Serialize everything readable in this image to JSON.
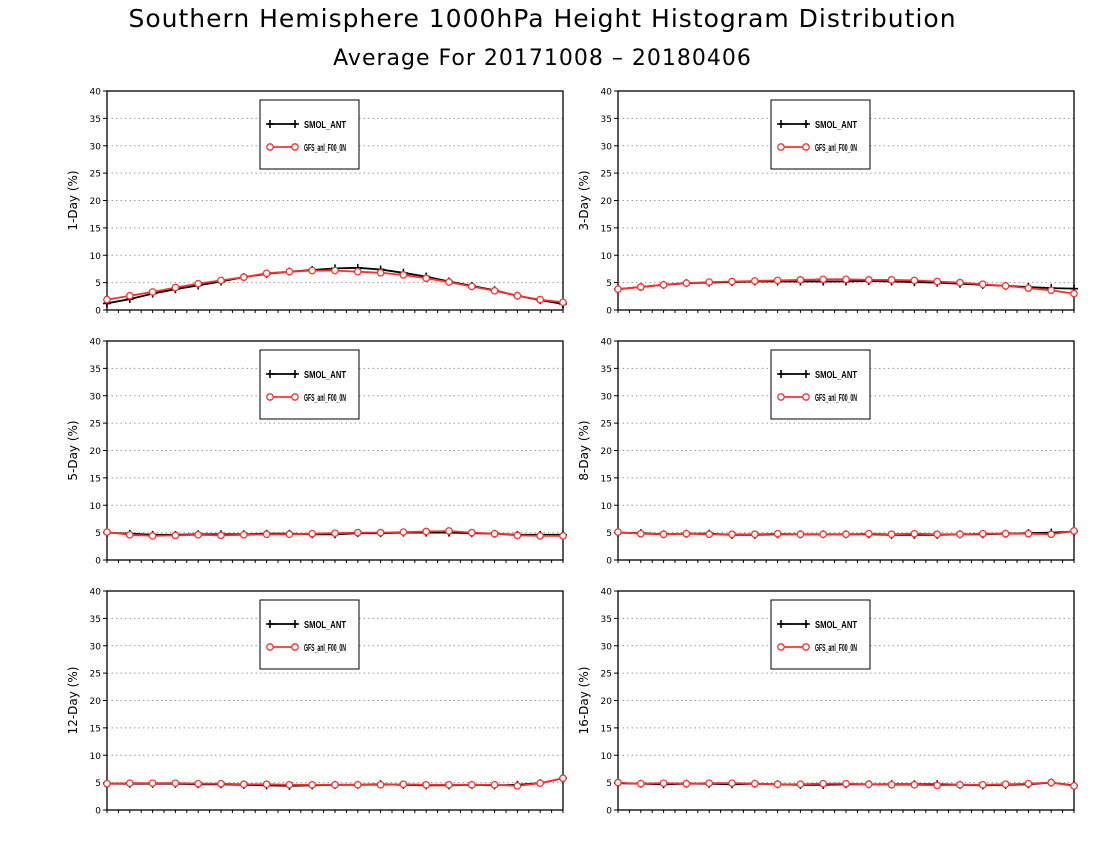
{
  "title": "Southern Hemisphere 1000hPa Height Histogram Distribution",
  "subtitle": "Average For 20171008 – 20180406",
  "colors": {
    "series1": "#000000",
    "series2": "#ff3030",
    "grid": "#9a9a9a"
  },
  "chart_data": [
    {
      "type": "line",
      "ylabel": "1-Day (%)",
      "ylim": [
        0,
        40
      ],
      "yticks": [
        0,
        5,
        10,
        15,
        20,
        25,
        30,
        35,
        40
      ],
      "grid": true,
      "legend": "top-center",
      "series": [
        {
          "name": "SMOL_ANT",
          "marker": "plus",
          "values": [
            1.2,
            2.0,
            3.0,
            3.8,
            4.5,
            5.2,
            6.0,
            6.6,
            7.0,
            7.3,
            7.6,
            7.7,
            7.4,
            6.8,
            6.1,
            5.2,
            4.4,
            3.6,
            2.6,
            1.8,
            1.1
          ]
        },
        {
          "name": "GFS_anl_F00_0N",
          "marker": "circle",
          "values": [
            1.9,
            2.6,
            3.3,
            4.1,
            4.8,
            5.4,
            6.0,
            6.7,
            7.0,
            7.2,
            7.2,
            7.0,
            6.8,
            6.4,
            5.8,
            5.1,
            4.3,
            3.5,
            2.6,
            1.9,
            1.4
          ]
        }
      ]
    },
    {
      "type": "line",
      "ylabel": "3-Day (%)",
      "ylim": [
        0,
        40
      ],
      "yticks": [
        0,
        5,
        10,
        15,
        20,
        25,
        30,
        35,
        40
      ],
      "grid": true,
      "legend": "top-center",
      "series": [
        {
          "name": "SMOL_ANT",
          "marker": "plus",
          "values": [
            3.8,
            4.2,
            4.6,
            4.9,
            5.0,
            5.1,
            5.2,
            5.2,
            5.2,
            5.2,
            5.2,
            5.3,
            5.2,
            5.1,
            5.0,
            4.8,
            4.6,
            4.4,
            4.2,
            4.0,
            3.9
          ]
        },
        {
          "name": "GFS_anl_F00_0N",
          "marker": "circle",
          "values": [
            3.8,
            4.2,
            4.6,
            4.9,
            5.1,
            5.2,
            5.3,
            5.4,
            5.5,
            5.6,
            5.6,
            5.5,
            5.5,
            5.4,
            5.2,
            5.0,
            4.7,
            4.4,
            4.0,
            3.6,
            3.0
          ]
        }
      ]
    },
    {
      "type": "line",
      "ylabel": "5-Day (%)",
      "ylim": [
        0,
        40
      ],
      "yticks": [
        0,
        5,
        10,
        15,
        20,
        25,
        30,
        35,
        40
      ],
      "grid": true,
      "legend": "top-center",
      "series": [
        {
          "name": "SMOL_ANT",
          "marker": "plus",
          "values": [
            5.0,
            4.8,
            4.6,
            4.6,
            4.7,
            4.7,
            4.7,
            4.8,
            4.8,
            4.7,
            4.7,
            4.9,
            4.9,
            5.0,
            5.0,
            5.0,
            4.9,
            4.8,
            4.6,
            4.6,
            4.6
          ]
        },
        {
          "name": "GFS_anl_F00_0N",
          "marker": "circle",
          "values": [
            5.1,
            4.6,
            4.4,
            4.5,
            4.6,
            4.5,
            4.6,
            4.7,
            4.7,
            4.8,
            4.9,
            5.0,
            5.0,
            5.1,
            5.2,
            5.3,
            5.0,
            4.8,
            4.5,
            4.4,
            4.4
          ]
        }
      ]
    },
    {
      "type": "line",
      "ylabel": "8-Day (%)",
      "ylim": [
        0,
        40
      ],
      "yticks": [
        0,
        5,
        10,
        15,
        20,
        25,
        30,
        35,
        40
      ],
      "grid": true,
      "legend": "top-center",
      "series": [
        {
          "name": "SMOL_ANT",
          "marker": "plus",
          "values": [
            5.0,
            4.9,
            4.7,
            4.8,
            4.8,
            4.6,
            4.6,
            4.7,
            4.7,
            4.7,
            4.7,
            4.7,
            4.6,
            4.6,
            4.6,
            4.7,
            4.7,
            4.8,
            4.9,
            5.0,
            5.2
          ]
        },
        {
          "name": "GFS_anl_F00_0N",
          "marker": "circle",
          "values": [
            5.1,
            4.8,
            4.7,
            4.8,
            4.7,
            4.7,
            4.7,
            4.8,
            4.7,
            4.7,
            4.7,
            4.8,
            4.7,
            4.8,
            4.7,
            4.7,
            4.8,
            4.8,
            4.8,
            4.7,
            5.3
          ]
        }
      ]
    },
    {
      "type": "line",
      "ylabel": "12-Day (%)",
      "ylim": [
        0,
        40
      ],
      "yticks": [
        0,
        5,
        10,
        15,
        20,
        25,
        30,
        35,
        40
      ],
      "grid": true,
      "legend": "top-center",
      "series": [
        {
          "name": "SMOL_ANT",
          "marker": "plus",
          "values": [
            4.8,
            4.8,
            4.8,
            4.8,
            4.7,
            4.7,
            4.6,
            4.5,
            4.4,
            4.5,
            4.6,
            4.6,
            4.7,
            4.6,
            4.5,
            4.5,
            4.6,
            4.5,
            4.6,
            4.9,
            5.8
          ]
        },
        {
          "name": "GFS_anl_F00_0N",
          "marker": "circle",
          "values": [
            4.8,
            4.9,
            4.9,
            4.9,
            4.8,
            4.8,
            4.7,
            4.7,
            4.6,
            4.6,
            4.6,
            4.6,
            4.6,
            4.7,
            4.6,
            4.6,
            4.6,
            4.6,
            4.4,
            4.9,
            5.8
          ]
        }
      ]
    },
    {
      "type": "line",
      "ylabel": "16-Day (%)",
      "ylim": [
        0,
        40
      ],
      "yticks": [
        0,
        5,
        10,
        15,
        20,
        25,
        30,
        35,
        40
      ],
      "grid": true,
      "legend": "top-center",
      "series": [
        {
          "name": "SMOL_ANT",
          "marker": "plus",
          "values": [
            4.9,
            4.8,
            4.7,
            4.8,
            4.8,
            4.7,
            4.8,
            4.7,
            4.6,
            4.6,
            4.7,
            4.7,
            4.7,
            4.7,
            4.7,
            4.6,
            4.5,
            4.6,
            4.7,
            5.0,
            4.5
          ]
        },
        {
          "name": "GFS_anl_F00_0N",
          "marker": "circle",
          "values": [
            5.0,
            4.8,
            4.9,
            4.8,
            4.9,
            4.9,
            4.8,
            4.7,
            4.7,
            4.8,
            4.8,
            4.7,
            4.6,
            4.6,
            4.5,
            4.6,
            4.6,
            4.7,
            4.8,
            5.0,
            4.4
          ]
        }
      ]
    }
  ]
}
